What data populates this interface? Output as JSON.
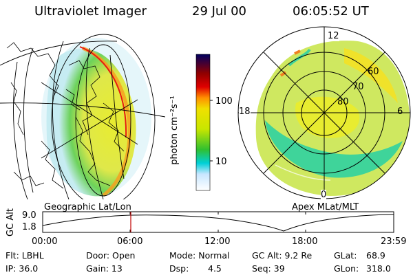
{
  "header": {
    "title": "Ultraviolet Imager",
    "date": "29 Jul 00",
    "time": "06:05:52 UT"
  },
  "colorbar": {
    "unit": "photon cm⁻²s⁻¹",
    "ticks": [
      "100",
      "10"
    ],
    "scale": "log",
    "colors": [
      "#ffffff",
      "#c8e6ff",
      "#00d0d8",
      "#30c030",
      "#c8e600",
      "#f0e000",
      "#ff9000",
      "#e00000",
      "#900000",
      "#000060"
    ]
  },
  "left_panel": {
    "label": "Geographic Lat/Lon"
  },
  "right_panel": {
    "label": "Apex MLat/MLT",
    "mlt_labels": [
      "12",
      "18",
      "6",
      "0"
    ],
    "lat_labels": [
      "60",
      "70",
      "80"
    ]
  },
  "altitude_plot": {
    "ylabel": "GC Alt",
    "yticks": [
      "9.0",
      "1.8"
    ],
    "xticks": [
      "00:00",
      "06:00",
      "12:00",
      "18:00",
      "23:59"
    ]
  },
  "footer": {
    "filter": "Flt: LBHL",
    "ip": "IP: 36.0",
    "door": "Door: Open",
    "gain": "Gain: 13",
    "mode": "Mode: Normal",
    "dsp_label": "Dsp:",
    "dsp_value": "4.5",
    "gc_alt": "GC Alt: 9.2 Re",
    "seq": "Seq: 39",
    "glat_label": "GLat:",
    "glat_value": "68.9",
    "glon_label": "GLon:",
    "glon_value": "318.0"
  }
}
